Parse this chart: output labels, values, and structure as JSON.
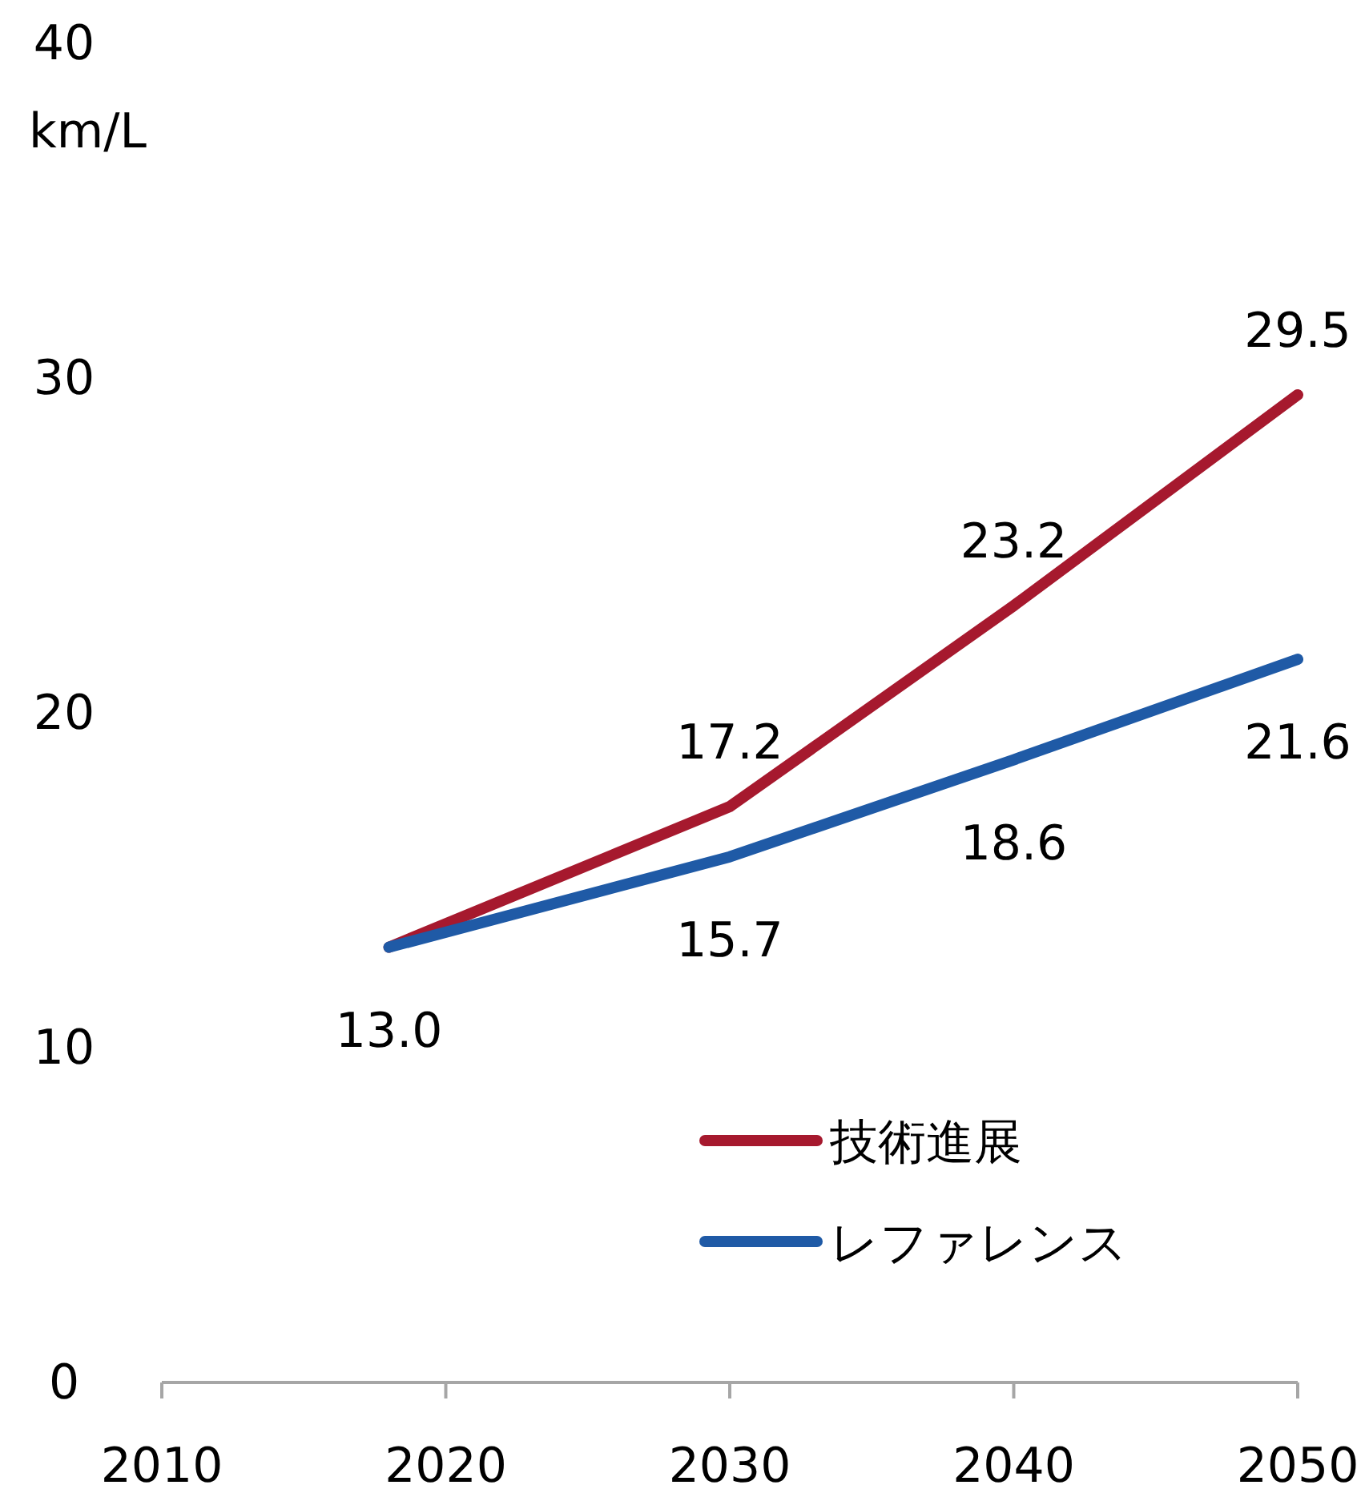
{
  "chart_data": {
    "type": "line",
    "ylabel": "km/L",
    "x": [
      2018,
      2030,
      2040,
      2050
    ],
    "xlim": [
      2010,
      2050
    ],
    "xticks": [
      2010,
      2020,
      2030,
      2040,
      2050
    ],
    "ylim": [
      0,
      40
    ],
    "yticks": [
      0,
      10,
      20,
      30,
      40
    ],
    "legend": "bottom",
    "series": [
      {
        "name": "技術進展",
        "color": "#a6192e",
        "values": [
          13.0,
          17.2,
          23.2,
          29.5
        ],
        "value_labels": [
          null,
          "17.2",
          "23.2",
          "29.5"
        ]
      },
      {
        "name": "レファレンス",
        "color": "#1f5aa6",
        "values": [
          13.0,
          15.7,
          18.6,
          21.6
        ],
        "value_labels": [
          "13.0",
          "15.7",
          "18.6",
          "21.6"
        ]
      }
    ]
  }
}
